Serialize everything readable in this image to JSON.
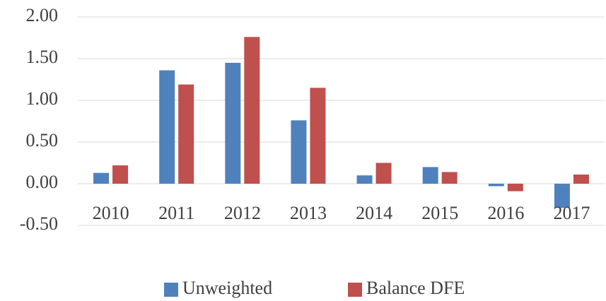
{
  "chart_data": {
    "type": "bar",
    "categories": [
      "2010",
      "2011",
      "2012",
      "2013",
      "2014",
      "2015",
      "2016",
      "2017"
    ],
    "series": [
      {
        "name": "Unweighted",
        "color": "#4f81bd",
        "values": [
          0.13,
          1.36,
          1.45,
          0.76,
          0.1,
          0.2,
          -0.03,
          -0.29
        ]
      },
      {
        "name": "Balance DFE",
        "color": "#c0504d",
        "values": [
          0.22,
          1.19,
          1.76,
          1.15,
          0.25,
          0.14,
          -0.09,
          0.11
        ]
      }
    ],
    "ylim": [
      -0.5,
      2.0
    ],
    "yticks": [
      {
        "value": -0.5,
        "label": "-0.50"
      },
      {
        "value": 0,
        "label": "0.00"
      },
      {
        "value": 0.5,
        "label": "0.50"
      },
      {
        "value": 1.0,
        "label": "1.00"
      },
      {
        "value": 1.5,
        "label": "1.50"
      },
      {
        "value": 2.0,
        "label": "2.00"
      }
    ],
    "grid": true,
    "legend": "bottom"
  }
}
